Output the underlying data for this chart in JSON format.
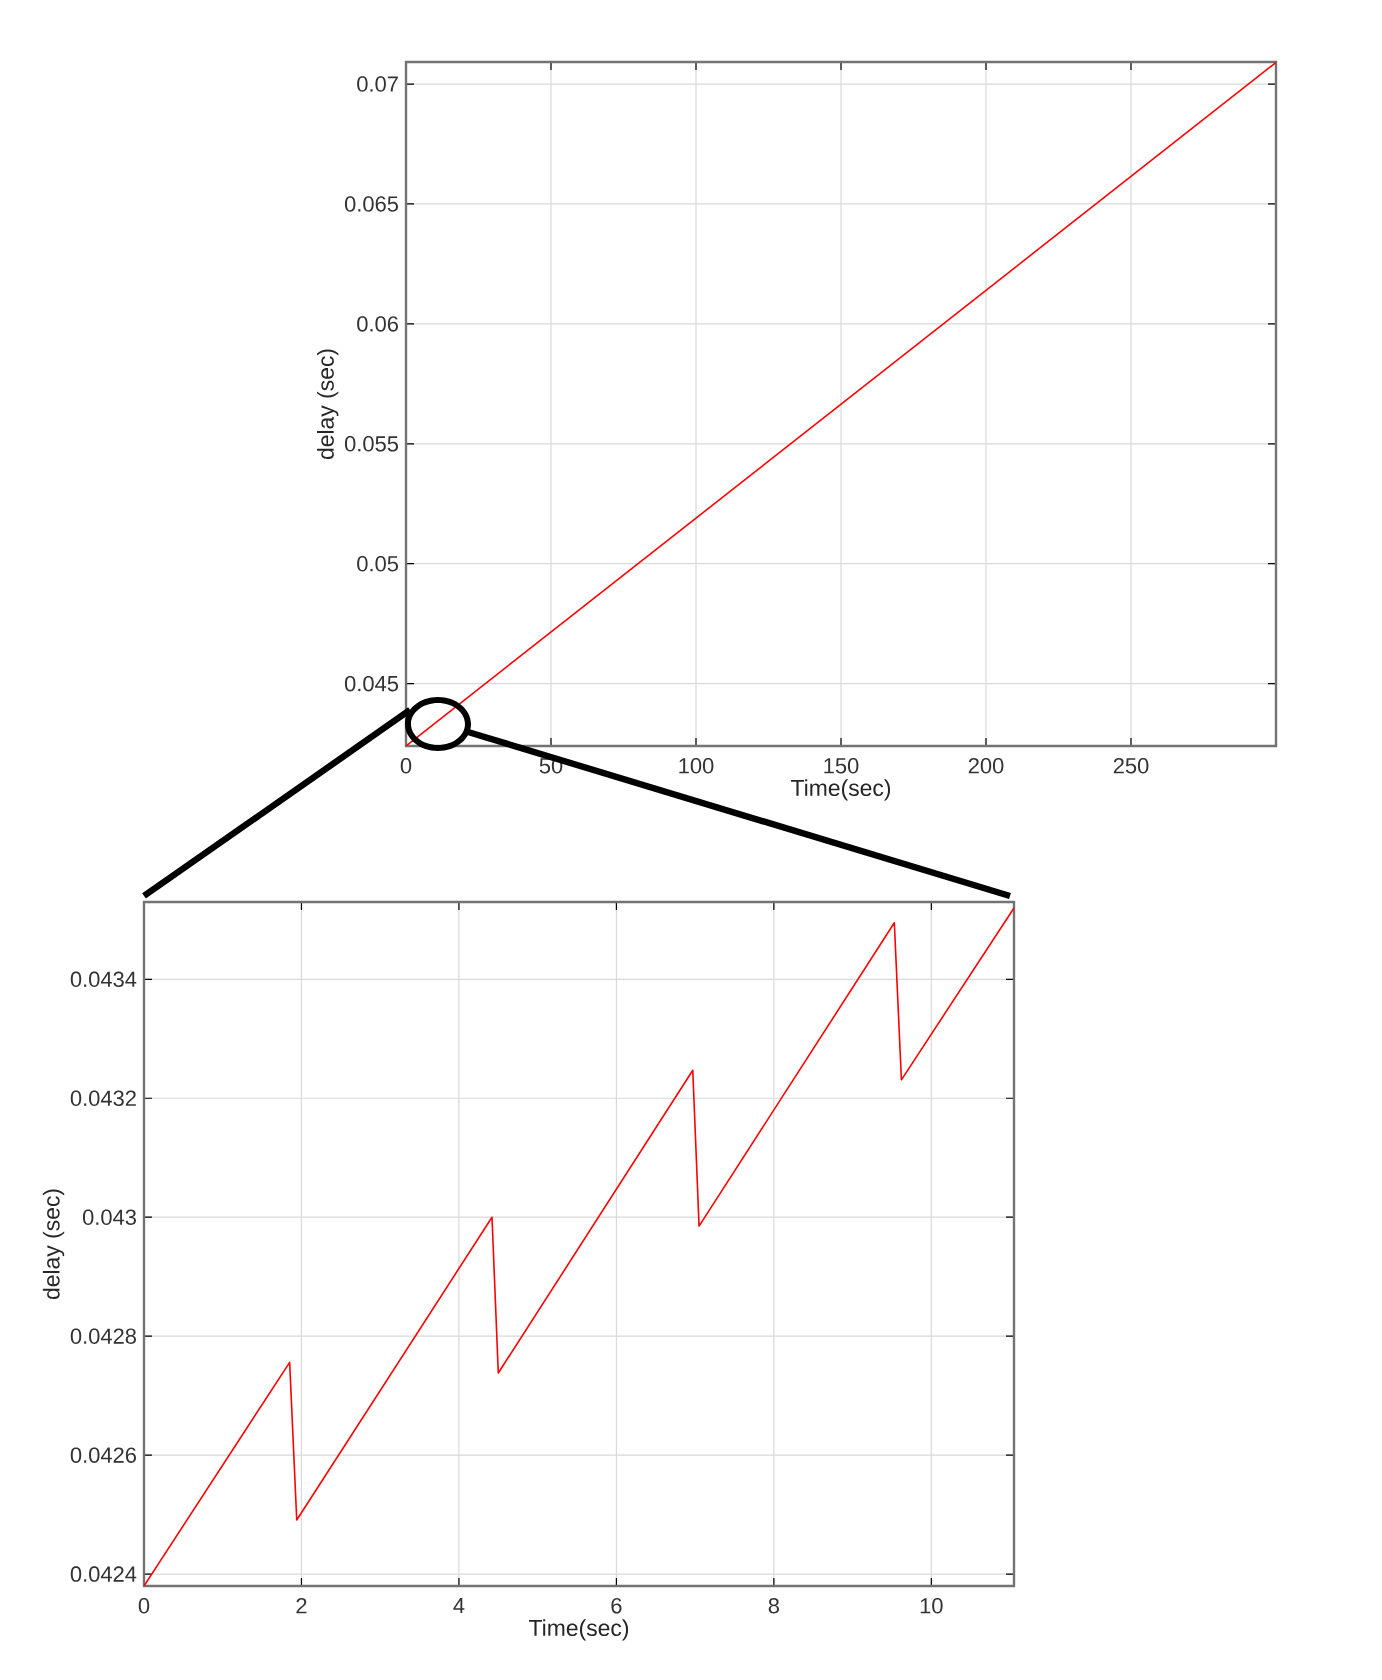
{
  "chart_data": [
    {
      "type": "line",
      "xlabel": "Time(sec)",
      "ylabel": "delay (sec)",
      "x": [
        0,
        300
      ],
      "values": [
        0.0424,
        0.0709
      ],
      "color": "#ff0000",
      "xlim": [
        0,
        300
      ],
      "ylim": [
        0.0424,
        0.07092
      ],
      "xticks": [
        0,
        50,
        100,
        150,
        200,
        250
      ],
      "yticks": [
        0.045,
        0.05,
        0.055,
        0.06,
        0.065,
        0.07
      ],
      "grid": true
    },
    {
      "type": "line",
      "xlabel": "Time(sec)",
      "ylabel": "delay (sec)",
      "x": [
        0,
        1.85,
        1.94,
        4.42,
        4.5,
        6.97,
        7.05,
        9.53,
        9.62,
        11.05
      ],
      "values": [
        0.04238,
        0.042756,
        0.042491,
        0.043,
        0.042738,
        0.043247,
        0.042985,
        0.043495,
        0.043231,
        0.04352
      ],
      "color": "#ff0000",
      "xlim": [
        0,
        11.05
      ],
      "ylim": [
        0.04238,
        0.04353
      ],
      "xticks": [
        0,
        2,
        4,
        6,
        8,
        10
      ],
      "yticks": [
        0.0424,
        0.0426,
        0.0428,
        0.043,
        0.0432,
        0.0434
      ],
      "grid": true
    }
  ]
}
